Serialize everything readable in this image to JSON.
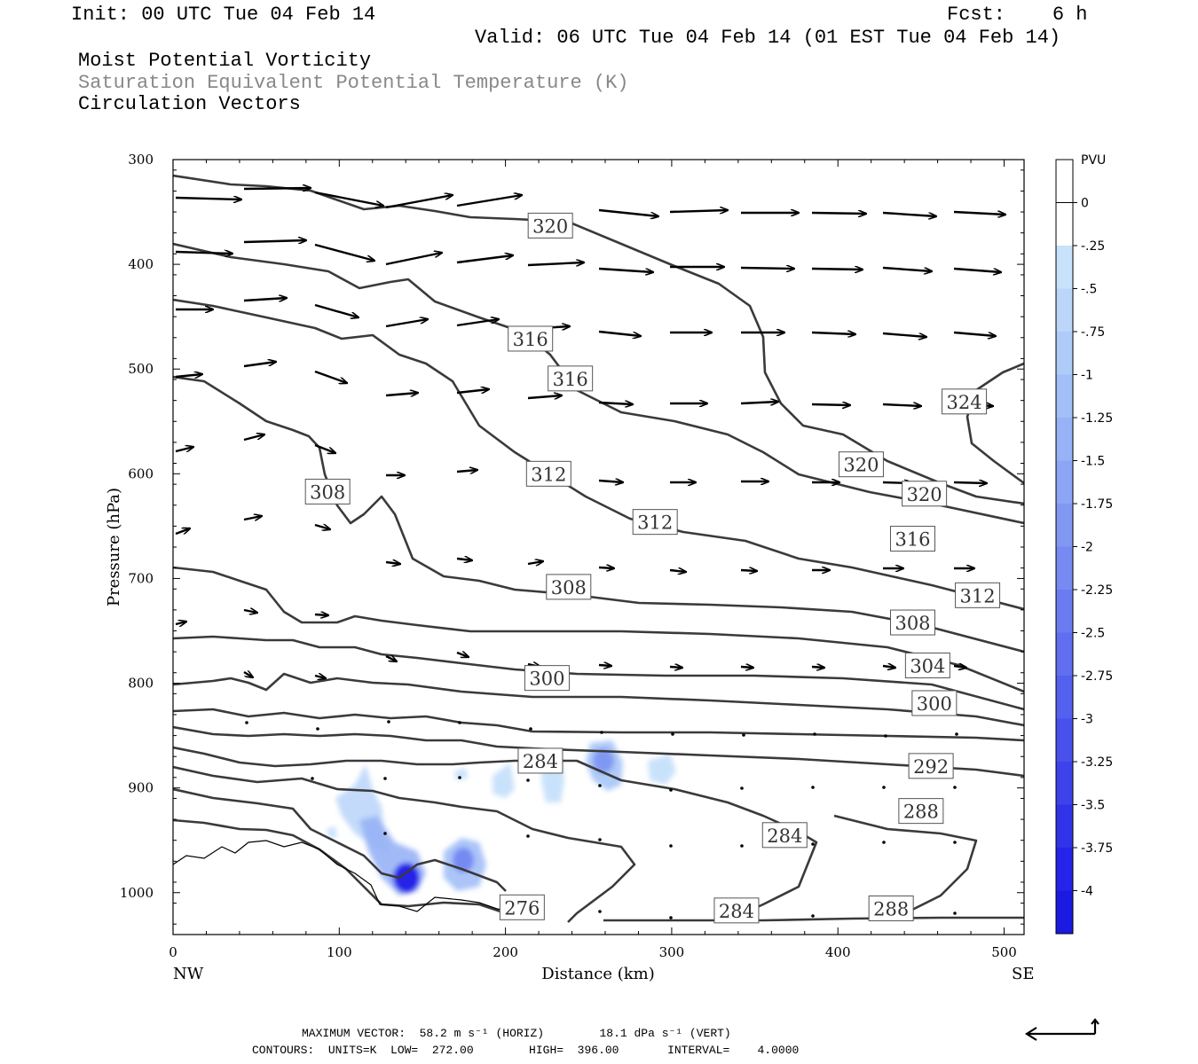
{
  "header": {
    "init": "Init: 00 UTC Tue 04 Feb 14",
    "fcst": "Fcst:    6 h",
    "valid": "Valid: 06 UTC Tue 04 Feb 14 (01 EST Tue 04 Feb 14)",
    "field1": "Moist Potential Vorticity",
    "field2": "Saturation Equivalent Potential Temperature (K)",
    "field3": "Circulation Vectors"
  },
  "footer": {
    "max_vector": "MAXIMUM VECTOR:  58.2 m s⁻¹ (HORIZ)        18.1 dPa s⁻¹ (VERT)",
    "contours": "CONTOURS:  UNITS=K  LOW=  272.00        HIGH=  396.00       INTERVAL=    4.0000"
  },
  "colors": {
    "contour": "#3a3a3a",
    "vector": "#000000",
    "shade_light": "#c9e2fb",
    "shade_dark": "#1a1ae0"
  },
  "chart_data": {
    "type": "cross-section",
    "xlabel": "Distance (km)",
    "ylabel": "Pressure (hPa)",
    "xlim": [
      0,
      512
    ],
    "ylim": [
      1040,
      300
    ],
    "x_ticks": [
      0,
      100,
      200,
      300,
      400,
      500
    ],
    "y_ticks": [
      300,
      400,
      500,
      600,
      700,
      800,
      900,
      1000
    ],
    "x_endpoints": [
      "NW",
      "SE"
    ],
    "contour_labels": [
      {
        "text": "320",
        "x": 227,
        "p": 363
      },
      {
        "text": "316",
        "x": 215,
        "p": 471
      },
      {
        "text": "316",
        "x": 239,
        "p": 509
      },
      {
        "text": "324",
        "x": 476,
        "p": 531
      },
      {
        "text": "312",
        "x": 226,
        "p": 600
      },
      {
        "text": "308",
        "x": 93,
        "p": 617
      },
      {
        "text": "320",
        "x": 414,
        "p": 591
      },
      {
        "text": "320",
        "x": 452,
        "p": 619
      },
      {
        "text": "312",
        "x": 290,
        "p": 646
      },
      {
        "text": "316",
        "x": 445,
        "p": 662
      },
      {
        "text": "308",
        "x": 238,
        "p": 708
      },
      {
        "text": "312",
        "x": 484,
        "p": 716
      },
      {
        "text": "308",
        "x": 445,
        "p": 742
      },
      {
        "text": "304",
        "x": 454,
        "p": 783
      },
      {
        "text": "300",
        "x": 225,
        "p": 795
      },
      {
        "text": "300",
        "x": 458,
        "p": 819
      },
      {
        "text": "284",
        "x": 221,
        "p": 874
      },
      {
        "text": "292",
        "x": 456,
        "p": 879
      },
      {
        "text": "288",
        "x": 450,
        "p": 922
      },
      {
        "text": "284",
        "x": 368,
        "p": 945
      },
      {
        "text": "276",
        "x": 210,
        "p": 1014
      },
      {
        "text": "284",
        "x": 339,
        "p": 1017
      },
      {
        "text": "288",
        "x": 432,
        "p": 1015
      }
    ],
    "colorbar": {
      "title": "PVU",
      "labels": [
        "0",
        "-.25",
        "-.5",
        "-.75",
        "-1",
        "-1.25",
        "-1.5",
        "-1.75",
        "-2",
        "-2.25",
        "-2.5",
        "-2.75",
        "-3",
        "-3.25",
        "-3.5",
        "-3.75",
        "-4"
      ],
      "colors": [
        "#ffffff",
        "#ffffff",
        "#c9e2fb",
        "#bcd6fa",
        "#afcbf8",
        "#a3bff7",
        "#97b2f6",
        "#8ca5f5",
        "#8198f3",
        "#768af2",
        "#6b7cf1",
        "#606eef",
        "#5460ee",
        "#4951ec",
        "#3d42eb",
        "#3133e9",
        "#2524e8",
        "#1a1ae0"
      ]
    }
  }
}
